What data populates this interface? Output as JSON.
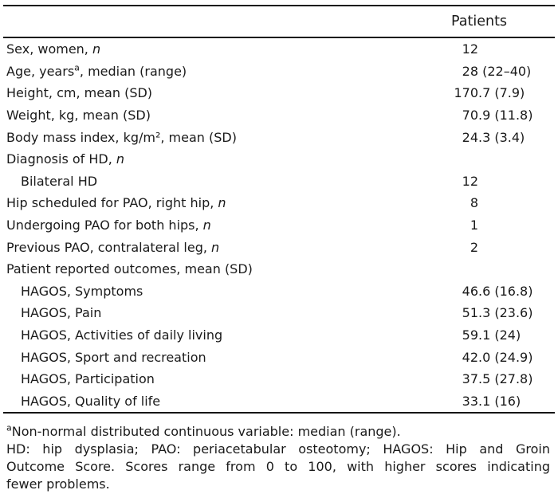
{
  "table": {
    "column_header": "Patients",
    "rows": [
      {
        "indent": false,
        "label": [
          {
            "text": "Sex, women, "
          },
          {
            "text": "n",
            "style": "italic"
          }
        ],
        "value": "12"
      },
      {
        "indent": false,
        "label": [
          {
            "text": "Age, years"
          },
          {
            "text": "a",
            "style": "sup"
          },
          {
            "text": ", median (range)"
          }
        ],
        "value": "28 (22–40)"
      },
      {
        "indent": false,
        "label": [
          {
            "text": "Height, cm, mean (SD)"
          }
        ],
        "value": "170.7 (7.9)"
      },
      {
        "indent": false,
        "label": [
          {
            "text": "Weight, kg, mean (SD)"
          }
        ],
        "value": "70.9 (11.8)"
      },
      {
        "indent": false,
        "label": [
          {
            "text": "Body mass index, kg/m², mean (SD)"
          }
        ],
        "value": "24.3 (3.4)"
      },
      {
        "indent": false,
        "label": [
          {
            "text": "Diagnosis of HD, "
          },
          {
            "text": "n",
            "style": "italic"
          }
        ],
        "value": ""
      },
      {
        "indent": true,
        "label": [
          {
            "text": "Bilateral HD"
          }
        ],
        "value": "12"
      },
      {
        "indent": false,
        "label": [
          {
            "text": "Hip scheduled for PAO, right hip, "
          },
          {
            "text": "n",
            "style": "italic"
          }
        ],
        "value": "8"
      },
      {
        "indent": false,
        "label": [
          {
            "text": "Undergoing PAO for both hips, "
          },
          {
            "text": "n",
            "style": "italic"
          }
        ],
        "value": "1"
      },
      {
        "indent": false,
        "label": [
          {
            "text": "Previous PAO, contralateral leg, "
          },
          {
            "text": "n",
            "style": "italic"
          }
        ],
        "value": "2"
      },
      {
        "indent": false,
        "label": [
          {
            "text": "Patient reported outcomes, mean (SD)"
          }
        ],
        "value": ""
      },
      {
        "indent": true,
        "label": [
          {
            "text": "HAGOS, Symptoms"
          }
        ],
        "value": "46.6 (16.8)"
      },
      {
        "indent": true,
        "label": [
          {
            "text": "HAGOS, Pain"
          }
        ],
        "value": "51.3 (23.6)"
      },
      {
        "indent": true,
        "label": [
          {
            "text": "HAGOS, Activities of daily living"
          }
        ],
        "value": "59.1 (24)"
      },
      {
        "indent": true,
        "label": [
          {
            "text": "HAGOS, Sport and recreation"
          }
        ],
        "value": "42.0 (24.9)"
      },
      {
        "indent": true,
        "label": [
          {
            "text": "HAGOS, Participation"
          }
        ],
        "value": "37.5 (27.8)"
      },
      {
        "indent": true,
        "label": [
          {
            "text": "HAGOS, Quality of life"
          }
        ],
        "value": "33.1 (16)"
      }
    ]
  },
  "footnotes": {
    "note_a": {
      "marker": "a",
      "text": "Non-normal distributed continuous variable: median (range)."
    },
    "abbreviations_full": "HD: hip dysplasia; PAO: periacetabular osteotomy; HAGOS: Hip and Groin Outcome Score. Scores range from 0 to 100, with higher scores indicating fewer problems.",
    "abbreviations_lines": [
      "HD: hip dysplasia; PAO: periacetabular osteotomy; HAGOS: Hip and Groin",
      "Outcome Score. Scores range from 0 to 100, with higher scores indicating",
      "fewer problems."
    ]
  },
  "colors": {
    "background": "#ffffff",
    "text": "#1a1a1a",
    "rule": "#151515"
  }
}
